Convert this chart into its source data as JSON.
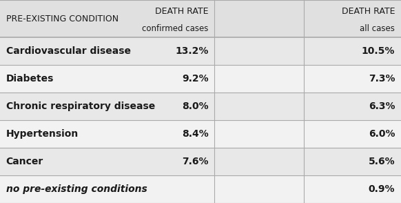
{
  "header_col1": "PRE-EXISTING CONDITION",
  "header_col2_line1": "DEATH RATE",
  "header_col2_line2": "confirmed cases",
  "header_col3_line1": "DEATH RATE",
  "header_col3_line2": "all cases",
  "rows": [
    {
      "condition": "Cardiovascular disease",
      "confirmed": "13.2%",
      "all": "10.5%",
      "italic": false
    },
    {
      "condition": "Diabetes",
      "confirmed": "9.2%",
      "all": "7.3%",
      "italic": false
    },
    {
      "condition": "Chronic respiratory disease",
      "confirmed": "8.0%",
      "all": "6.3%",
      "italic": false
    },
    {
      "condition": "Hypertension",
      "confirmed": "8.4%",
      "all": "6.0%",
      "italic": false
    },
    {
      "condition": "Cancer",
      "confirmed": "7.6%",
      "all": "5.6%",
      "italic": false
    },
    {
      "condition": "no pre-existing conditions",
      "confirmed": "",
      "all": "0.9%",
      "italic": true
    }
  ],
  "bg_color": "#f2f2f2",
  "row_alt_color": "#e8e8e8",
  "header_bg": "#e0e0e0",
  "line_color": "#aaaaaa",
  "text_color": "#1a1a1a",
  "col_divider1": 0.535,
  "col_divider2": 0.757,
  "header_fontsize": 9.0,
  "data_fontsize": 10.0,
  "fig_width": 5.82,
  "fig_height": 2.94,
  "dpi": 100
}
